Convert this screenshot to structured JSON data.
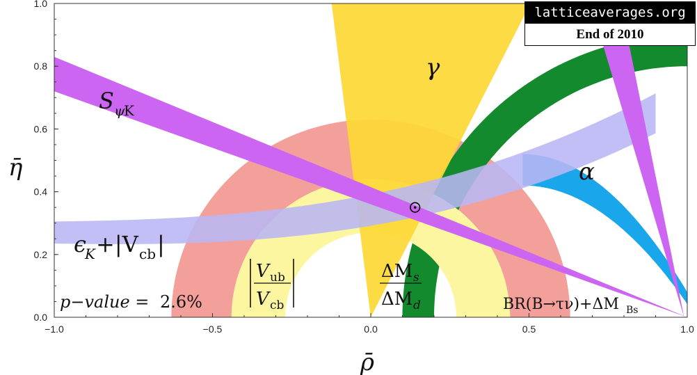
{
  "chart_data": {
    "type": "region",
    "xlabel": "ρ̄",
    "ylabel": "η̄",
    "xlim": [
      -1.0,
      1.0
    ],
    "ylim": [
      0.0,
      1.0
    ],
    "x_ticks": [
      "−1.0",
      "−0.5",
      "0.0",
      "0.5",
      "1.0"
    ],
    "y_ticks": [
      "0.0",
      "0.2",
      "0.4",
      "0.6",
      "0.8",
      "1.0"
    ],
    "best_fit": {
      "x": 0.14,
      "y": 0.35
    },
    "constraints": [
      {
        "name": "γ",
        "color": "#fdd835"
      },
      {
        "name": "α",
        "color": "#1aa6ea"
      },
      {
        "name": "S_ψK",
        "color": "#cc66f2"
      },
      {
        "name": "ε_K+|V_cb|",
        "color": "#b8b6f4"
      },
      {
        "name": "|V_ub/V_cb|",
        "color": "#f4a09a"
      },
      {
        "name": "ΔM_s/ΔM_d",
        "color": "#138a2d"
      },
      {
        "name": "BR(B→τν)+ΔM_Bs",
        "color": "#fdf6a0"
      }
    ],
    "annotations": {
      "pvalue_prefix": "p−value = ",
      "pvalue": "2.6%",
      "gamma": "γ",
      "alpha": "α",
      "s_main": "S",
      "s_sub": "ψ",
      "s_sub2": "K",
      "eps_main": "ϵ",
      "eps_sub": "K",
      "eps_rest": "+|V",
      "eps_cb": "cb",
      "eps_end": "|",
      "vub_V": "V",
      "vub_sub": "ub",
      "vcb_V": "V",
      "vcb_sub": "cb",
      "dms_main": "ΔM",
      "dms_sub": "s",
      "dmd_main": "ΔM",
      "dmd_sub": "d",
      "br_main": "BR(B→τν)+ΔM",
      "br_sub": "Bs"
    }
  },
  "watermark": {
    "site": "latticeaverages.org",
    "date": "End of 2010"
  }
}
